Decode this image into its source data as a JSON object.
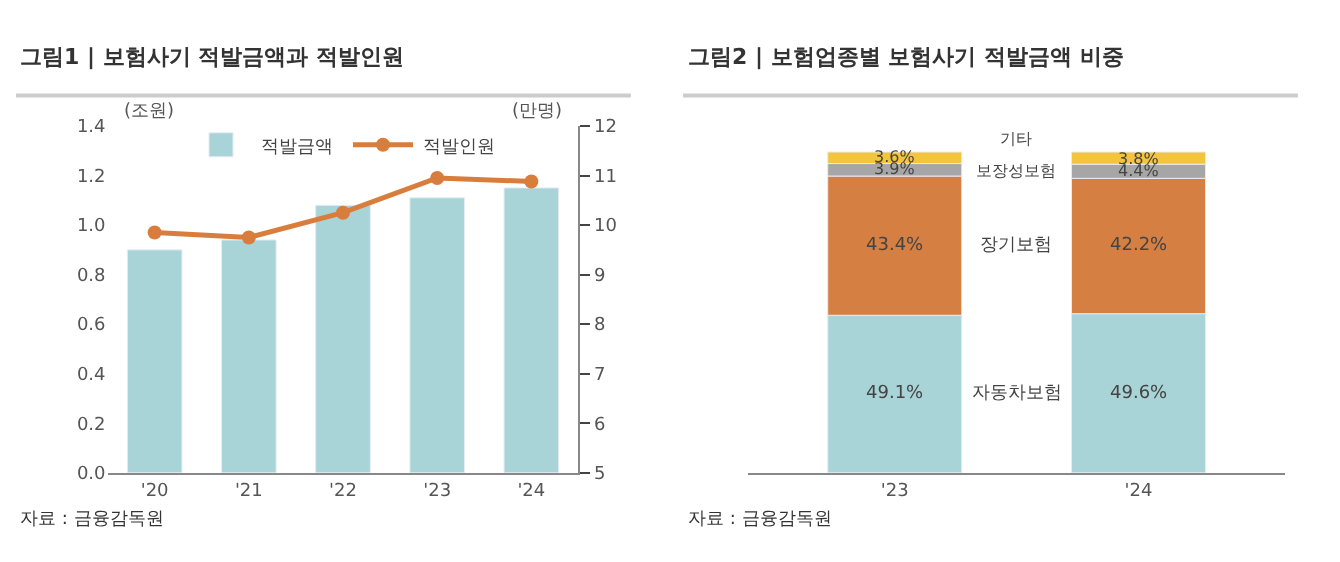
{
  "chart_data": [
    {
      "type": "bar",
      "title": "그림1 | 보험사기 적발금액과 적발인원",
      "ylabel": "(조원)",
      "y2label": "(만명)",
      "categories": [
        "'20",
        "'21",
        "'22",
        "'23",
        "'24"
      ],
      "series": [
        {
          "name": "적발금액",
          "type": "bar",
          "color": "#a8d3d7",
          "values": [
            0.9,
            0.94,
            1.08,
            1.11,
            1.15
          ]
        },
        {
          "name": "적발인원",
          "type": "line",
          "axis": "y2",
          "color": "#d97d3c",
          "marker": "circle",
          "values": [
            9.85,
            9.75,
            10.25,
            10.95,
            10.88
          ]
        }
      ],
      "ylim": [
        0,
        1.4
      ],
      "yticks": [
        {
          "value": 0,
          "label": "0.0"
        },
        0.2,
        0.4,
        0.6,
        0.8,
        {
          "value": 1,
          "label": "1.0"
        },
        1.2,
        1.4
      ],
      "y2lim": [
        5,
        12
      ],
      "y2ticks": [
        5,
        6,
        7,
        8,
        9,
        10,
        11,
        12
      ],
      "legend": "top",
      "annotations": [
        "자료 : 금융감독원"
      ]
    },
    {
      "type": "bar",
      "stacked": true,
      "title": "그림2 | 보험업종별 보험사기 적발금액 비중",
      "categories": [
        "'23",
        "'24"
      ],
      "tick_labels": "x",
      "series": [
        {
          "name": "자동차보험",
          "color": "#a8d3d7",
          "values": [
            49.1,
            49.6
          ],
          "value_labels": [
            "49.1%",
            "49.6%"
          ]
        },
        {
          "name": "장기보험",
          "color": "#d67f42",
          "values": [
            43.4,
            42.2
          ],
          "value_labels": [
            "43.4%",
            "42.2%"
          ]
        },
        {
          "name": "보장성보험",
          "color": "#a6a6a6",
          "values": [
            3.9,
            4.4
          ],
          "value_labels": [
            "3.9%",
            "4.4%"
          ]
        },
        {
          "name": "기타",
          "color": "#f2c53d",
          "values": [
            3.6,
            3.8
          ],
          "value_labels": [
            "3.6%",
            "3.8%"
          ]
        }
      ],
      "annotations": [
        "자료 : 금융감독원"
      ]
    }
  ]
}
